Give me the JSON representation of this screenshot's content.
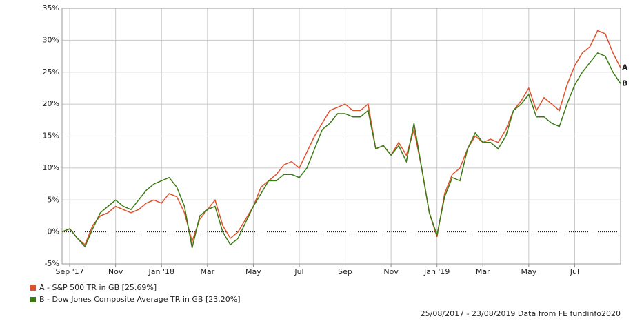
{
  "chart_data": {
    "type": "line",
    "categories": [
      null,
      "Sep '17",
      null,
      null,
      null,
      null,
      null,
      "Nov",
      null,
      null,
      null,
      null,
      null,
      "Jan '18",
      null,
      null,
      null,
      null,
      null,
      "Mar",
      null,
      null,
      null,
      null,
      null,
      "May",
      null,
      null,
      null,
      null,
      null,
      "Jul",
      null,
      null,
      null,
      null,
      null,
      "Sep",
      null,
      null,
      null,
      null,
      null,
      "Nov",
      null,
      null,
      null,
      null,
      null,
      "Jan '19",
      null,
      null,
      null,
      null,
      null,
      "Mar",
      null,
      null,
      null,
      null,
      null,
      "May",
      null,
      null,
      null,
      null,
      null,
      "Jul",
      null,
      null,
      null,
      null,
      null,
      null
    ],
    "series": [
      {
        "name": "A - S&P 500 TR in GB [25.69%]",
        "end_label": "A",
        "color": "#e0502a",
        "values": [
          0,
          0.5,
          -1,
          -2,
          1,
          2.5,
          3,
          4,
          3.5,
          3,
          3.5,
          4.5,
          5,
          4.5,
          6,
          5.5,
          3,
          -1.5,
          2,
          3.5,
          5,
          1,
          -1,
          0,
          2,
          4,
          7,
          8,
          9,
          10.5,
          11,
          10,
          12.5,
          15,
          17,
          19,
          19.5,
          20,
          19,
          19,
          20,
          13,
          13.5,
          12,
          14,
          12,
          16,
          10,
          3,
          -0.8,
          6,
          9,
          10,
          13,
          15,
          14,
          14.5,
          14,
          16,
          19,
          20.5,
          22.5,
          19,
          21,
          20,
          19,
          23,
          26,
          28,
          29,
          31.5,
          31,
          28,
          25.69
        ]
      },
      {
        "name": "B - Dow Jones Composite Average TR in GB [23.20%]",
        "end_label": "B",
        "color": "#3a7a14",
        "values": [
          0,
          0.5,
          -1,
          -2.3,
          0.5,
          3,
          4,
          5,
          4,
          3.5,
          5,
          6.5,
          7.5,
          8,
          8.5,
          7,
          4,
          -2.5,
          2.5,
          3.5,
          4,
          0,
          -2,
          -1,
          1.5,
          4,
          6,
          8,
          8,
          9,
          9,
          8.5,
          10,
          13,
          16,
          17,
          18.5,
          18.5,
          18,
          18,
          19,
          13,
          13.5,
          12,
          13.5,
          11,
          17,
          10,
          3,
          -0.5,
          5.5,
          8.5,
          8,
          13,
          15.5,
          14,
          14,
          13,
          15,
          19,
          20,
          21.5,
          18,
          18,
          17,
          16.5,
          20,
          23,
          25,
          26.5,
          28,
          27.5,
          25,
          23.2
        ]
      }
    ],
    "ylim": [
      -5,
      35
    ],
    "yticks": [
      {
        "value": -5,
        "label": "-5%"
      },
      {
        "value": 0,
        "label": "0%"
      },
      {
        "value": 5,
        "label": "5%"
      },
      {
        "value": 10,
        "label": "10%"
      },
      {
        "value": 15,
        "label": "15%"
      },
      {
        "value": 20,
        "label": "20%"
      },
      {
        "value": 25,
        "label": "25%"
      },
      {
        "value": 30,
        "label": "30%"
      },
      {
        "value": 35,
        "label": "35%"
      }
    ],
    "grid": true,
    "footer": "25/08/2017 - 23/08/2019 Data from FE fundinfo2020"
  }
}
